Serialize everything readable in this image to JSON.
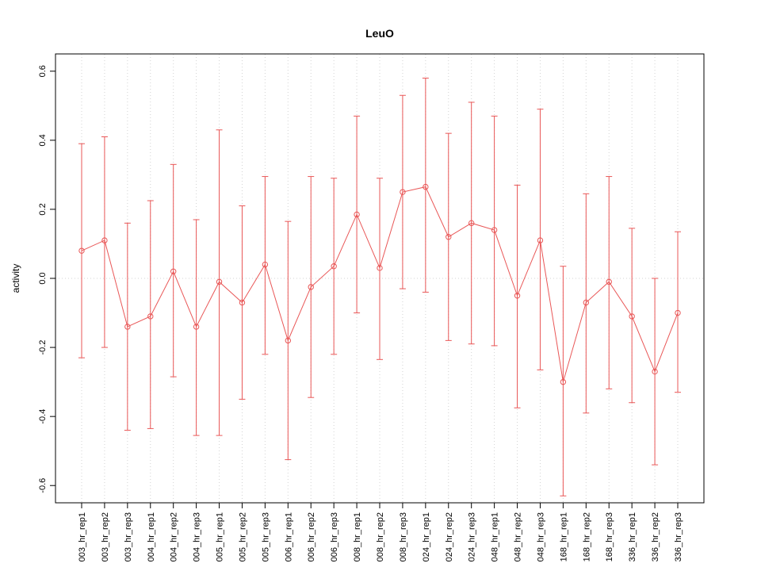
{
  "chart_data": {
    "type": "line",
    "title": "LeuO",
    "xlabel": "",
    "ylabel": "activity",
    "ylim": [
      -0.65,
      0.65
    ],
    "y_ticks": [
      -0.6,
      -0.4,
      -0.2,
      0.0,
      0.2,
      0.4,
      0.6
    ],
    "legend": "none",
    "grid": "vertical dotted gridline at each category plus dotted horizontal line at y=0",
    "marker": "open-circle",
    "error_bars": true,
    "series_color": "#e95757",
    "grid_color": "#d3d3d3",
    "axis_color": "#000000",
    "x_tick_label_rotation": 90,
    "y_tick_label_rotation": 90,
    "categories": [
      "003_hr_rep1",
      "003_hr_rep2",
      "003_hr_rep3",
      "004_hr_rep1",
      "004_hr_rep2",
      "004_hr_rep3",
      "005_hr_rep1",
      "005_hr_rep2",
      "005_hr_rep3",
      "006_hr_rep1",
      "006_hr_rep2",
      "006_hr_rep3",
      "008_hr_rep1",
      "008_hr_rep2",
      "008_hr_rep3",
      "024_hr_rep1",
      "024_hr_rep2",
      "024_hr_rep3",
      "048_hr_rep1",
      "048_hr_rep2",
      "048_hr_rep3",
      "168_hr_rep1",
      "168_hr_rep2",
      "168_hr_rep3",
      "336_hr_rep1",
      "336_hr_rep2",
      "336_hr_rep3"
    ],
    "values": [
      0.08,
      0.11,
      -0.14,
      -0.11,
      0.02,
      -0.14,
      -0.01,
      -0.07,
      0.04,
      -0.18,
      -0.025,
      0.035,
      0.185,
      0.03,
      0.25,
      0.265,
      0.12,
      0.16,
      0.14,
      -0.05,
      0.11,
      -0.3,
      -0.07,
      -0.01,
      -0.11,
      -0.27,
      -0.1
    ],
    "upper": [
      0.39,
      0.41,
      0.16,
      0.225,
      0.33,
      0.17,
      0.43,
      0.21,
      0.295,
      0.165,
      0.295,
      0.29,
      0.47,
      0.29,
      0.53,
      0.58,
      0.42,
      0.51,
      0.47,
      0.27,
      0.49,
      0.035,
      0.245,
      0.295,
      0.145,
      0.0,
      0.135
    ],
    "lower": [
      -0.23,
      -0.2,
      -0.44,
      -0.435,
      -0.285,
      -0.455,
      -0.455,
      -0.35,
      -0.22,
      -0.525,
      -0.345,
      -0.22,
      -0.1,
      -0.235,
      -0.03,
      -0.04,
      -0.18,
      -0.19,
      -0.195,
      -0.375,
      -0.265,
      -0.63,
      -0.39,
      -0.32,
      -0.36,
      -0.54,
      -0.33
    ]
  }
}
